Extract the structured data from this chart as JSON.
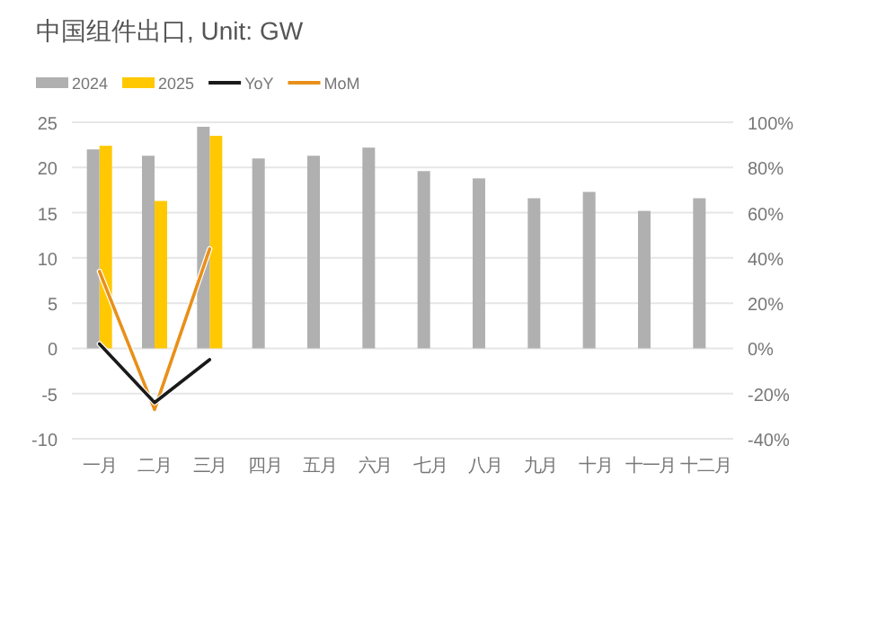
{
  "chart_data": {
    "type": "bar",
    "title": "中国组件出口, Unit: GW",
    "categories": [
      "一月",
      "二月",
      "三月",
      "四月",
      "五月",
      "六月",
      "七月",
      "八月",
      "九月",
      "十月",
      "十一月",
      "十二月"
    ],
    "series": [
      {
        "name": "2024",
        "color": "#b0b0b0",
        "values": [
          22,
          21.3,
          24.5,
          21,
          21.3,
          22.2,
          19.6,
          18.8,
          16.6,
          17.3,
          15.2,
          16.6
        ]
      },
      {
        "name": "2025",
        "color": "#ffc800",
        "values": [
          22.4,
          16.3,
          23.5,
          null,
          null,
          null,
          null,
          null,
          null,
          null,
          null,
          null
        ]
      },
      {
        "name": "YoY",
        "type": "line",
        "axis": "y2",
        "color": "#1a1a1a",
        "values": [
          2,
          -24,
          -5,
          null,
          null,
          null,
          null,
          null,
          null,
          null,
          null,
          null
        ]
      },
      {
        "name": "MoM",
        "type": "line",
        "axis": "y2",
        "color": "#e8901a",
        "values": [
          34,
          -27,
          44,
          null,
          null,
          null,
          null,
          null,
          null,
          null,
          null,
          null
        ]
      }
    ],
    "ylim": [
      -10,
      25
    ],
    "yticks": [
      -10,
      -5,
      0,
      5,
      10,
      15,
      20,
      25
    ],
    "y2lim": [
      -40,
      100
    ],
    "y2ticks": [
      {
        "value": -40,
        "label": "-40%"
      },
      {
        "value": -20,
        "label": "-20%"
      },
      {
        "value": 0,
        "label": "0%"
      },
      {
        "value": 20,
        "label": "20%"
      },
      {
        "value": 40,
        "label": "40%"
      },
      {
        "value": 60,
        "label": "60%"
      },
      {
        "value": 80,
        "label": "80%"
      },
      {
        "value": 100,
        "label": "100%"
      }
    ],
    "grid": "y",
    "legend": "top",
    "marker": "none",
    "line_style": "solid"
  }
}
